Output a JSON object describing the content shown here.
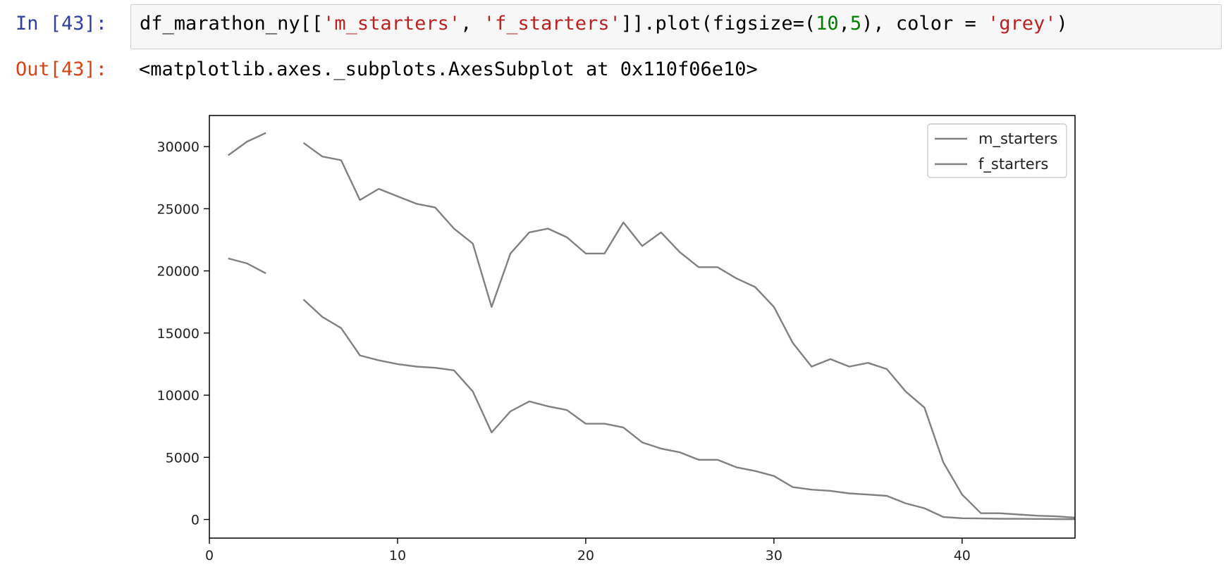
{
  "input_cell": {
    "prompt": "In [43]:",
    "code_tokens": [
      {
        "t": "df_marathon_ny[[",
        "c": "op"
      },
      {
        "t": "'m_starters'",
        "c": "str"
      },
      {
        "t": ", ",
        "c": "op"
      },
      {
        "t": "'f_starters'",
        "c": "str"
      },
      {
        "t": "]].plot(figsize=(",
        "c": "op"
      },
      {
        "t": "10",
        "c": "num"
      },
      {
        "t": ",",
        "c": "op"
      },
      {
        "t": "5",
        "c": "num"
      },
      {
        "t": "), color = ",
        "c": "op"
      },
      {
        "t": "'grey'",
        "c": "str"
      },
      {
        "t": ")",
        "c": "op"
      }
    ]
  },
  "output_cell": {
    "prompt": "Out[43]:",
    "text": "<matplotlib.axes._subplots.AxesSubplot at 0x110f06e10>"
  },
  "chart_data": {
    "type": "line",
    "title": "",
    "xlabel": "",
    "ylabel": "",
    "xlim": [
      0,
      46
    ],
    "ylim": [
      -1500,
      32500
    ],
    "xticks": [
      0,
      10,
      20,
      30,
      40
    ],
    "yticks": [
      0,
      5000,
      10000,
      15000,
      20000,
      25000,
      30000
    ],
    "line_color": "#808080",
    "grid": false,
    "legend_position": "top-right",
    "x": [
      1,
      2,
      3,
      4,
      5,
      6,
      7,
      8,
      9,
      10,
      11,
      12,
      13,
      14,
      15,
      16,
      17,
      18,
      19,
      20,
      21,
      22,
      23,
      24,
      25,
      26,
      27,
      28,
      29,
      30,
      31,
      32,
      33,
      34,
      35,
      36,
      37,
      38,
      39,
      40,
      41,
      42,
      43,
      44,
      45,
      46
    ],
    "series": [
      {
        "name": "m_starters",
        "values": [
          29300,
          30400,
          31100,
          null,
          30300,
          29200,
          28900,
          25700,
          26600,
          26000,
          25400,
          25100,
          23400,
          22200,
          17100,
          21400,
          23100,
          23400,
          22700,
          21400,
          21400,
          23900,
          22000,
          23100,
          21500,
          20300,
          20300,
          19400,
          18700,
          17100,
          14200,
          12300,
          12900,
          12300,
          12600,
          12100,
          10300,
          9000,
          4600,
          2000,
          500,
          500,
          400,
          300,
          250,
          150
        ]
      },
      {
        "name": "f_starters",
        "values": [
          21000,
          20600,
          19800,
          null,
          17700,
          16300,
          15400,
          13200,
          12800,
          12500,
          12300,
          12200,
          12000,
          10300,
          7000,
          8700,
          9500,
          9100,
          8800,
          7700,
          7700,
          7400,
          6200,
          5700,
          5400,
          4800,
          4800,
          4200,
          3900,
          3500,
          2600,
          2400,
          2300,
          2100,
          2000,
          1900,
          1300,
          900,
          200,
          100,
          80,
          60,
          50,
          40,
          30,
          20
        ]
      }
    ]
  }
}
